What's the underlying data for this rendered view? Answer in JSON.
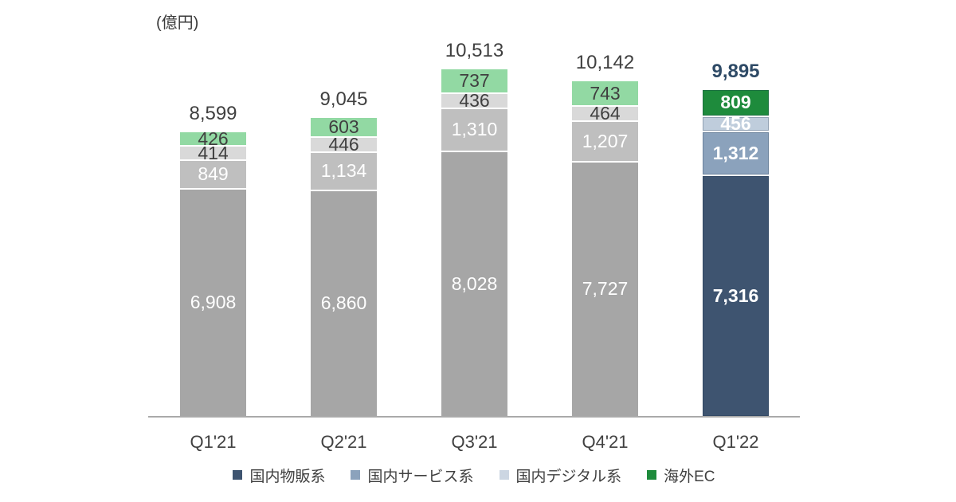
{
  "chart_data": {
    "type": "bar",
    "stacked": true,
    "unit_label": "(億円)",
    "categories": [
      "Q1'21",
      "Q2'21",
      "Q3'21",
      "Q4'21",
      "Q1'22"
    ],
    "series": [
      {
        "name": "国内物販系",
        "values": [
          6908,
          6860,
          8028,
          7727,
          7316
        ]
      },
      {
        "name": "国内サービス系",
        "values": [
          849,
          1134,
          1310,
          1207,
          1312
        ]
      },
      {
        "name": "国内デジタル系",
        "values": [
          414,
          446,
          436,
          464,
          456
        ]
      },
      {
        "name": "海外EC",
        "values": [
          426,
          603,
          737,
          743,
          809
        ]
      }
    ],
    "totals": [
      8599,
      9045,
      10513,
      10142,
      9895
    ],
    "highlight_category_index": 4,
    "ylim": [
      0,
      10513
    ],
    "grid": false,
    "legend": {
      "position": "bottom",
      "items": [
        {
          "label": "国内物販系",
          "color": "#3e5470"
        },
        {
          "label": "国内サービス系",
          "color": "#8ba2bc"
        },
        {
          "label": "国内デジタル系",
          "color": "#ccd6e2"
        },
        {
          "label": "海外EC",
          "color": "#1e8b3c"
        }
      ]
    },
    "colors": {
      "past_segments": [
        "#a6a6a6",
        "#bfbfbf",
        "#d9d9d9",
        "#92d9a3"
      ],
      "highlight_segments": [
        "#3e5470",
        "#8ba2bc",
        "#bfcddc",
        "#1e8b3c"
      ],
      "past_segment_text": [
        "#ffffff",
        "#ffffff",
        "#404040",
        "#404040"
      ],
      "highlight_segment_text": [
        "#ffffff",
        "#ffffff",
        "#ffffff",
        "#ffffff"
      ],
      "past_total_text": "#404040",
      "highlight_total_text": "#2e4a66",
      "axis_line": "#aaaaaa",
      "axis_label_text": "#404040",
      "background": "#ffffff"
    }
  }
}
